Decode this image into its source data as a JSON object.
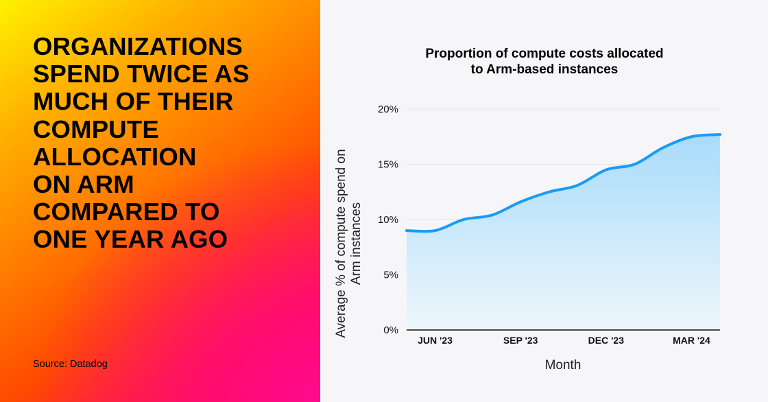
{
  "headline": {
    "lines": [
      "ORGANIZATIONS",
      "SPEND TWICE AS",
      "MUCH OF THEIR",
      "COMPUTE",
      "ALLOCATION",
      "ON ARM",
      "COMPARED TO",
      "ONE YEAR AGO"
    ]
  },
  "source": "Source: Datadog",
  "colors": {
    "line": "#1a9bf5",
    "fill_top": "#a8dcfb",
    "fill_bottom": "#eef6fb",
    "gradient": [
      "#fff200",
      "#ff7a00",
      "#ff1a40",
      "#ff0a8c"
    ]
  },
  "chart_data": {
    "type": "area",
    "title_lines": [
      "Proportion of compute costs allocated",
      "to Arm-based instances"
    ],
    "xlabel": "Month",
    "ylabel_lines": [
      "Average % of compute spend on",
      "Arm instances"
    ],
    "x": [
      "2023-05",
      "2023-06",
      "2023-07",
      "2023-08",
      "2023-09",
      "2023-10",
      "2023-11",
      "2023-12",
      "2024-01",
      "2024-02",
      "2024-03",
      "2024-04"
    ],
    "values": [
      9.0,
      9.0,
      10.0,
      10.4,
      11.6,
      12.5,
      13.1,
      14.5,
      15.0,
      16.5,
      17.5,
      17.7
    ],
    "xticks": [
      {
        "x": "2023-06",
        "label": "JUN '23"
      },
      {
        "x": "2023-09",
        "label": "SEP '23"
      },
      {
        "x": "2023-12",
        "label": "DEC '23"
      },
      {
        "x": "2024-03",
        "label": "MAR '24"
      }
    ],
    "yticks": [
      {
        "v": 0,
        "label": "0%"
      },
      {
        "v": 5,
        "label": "5%"
      },
      {
        "v": 10,
        "label": "10%"
      },
      {
        "v": 15,
        "label": "15%"
      },
      {
        "v": 20,
        "label": "20%"
      }
    ],
    "ylim": [
      0,
      20
    ],
    "grid": true
  }
}
